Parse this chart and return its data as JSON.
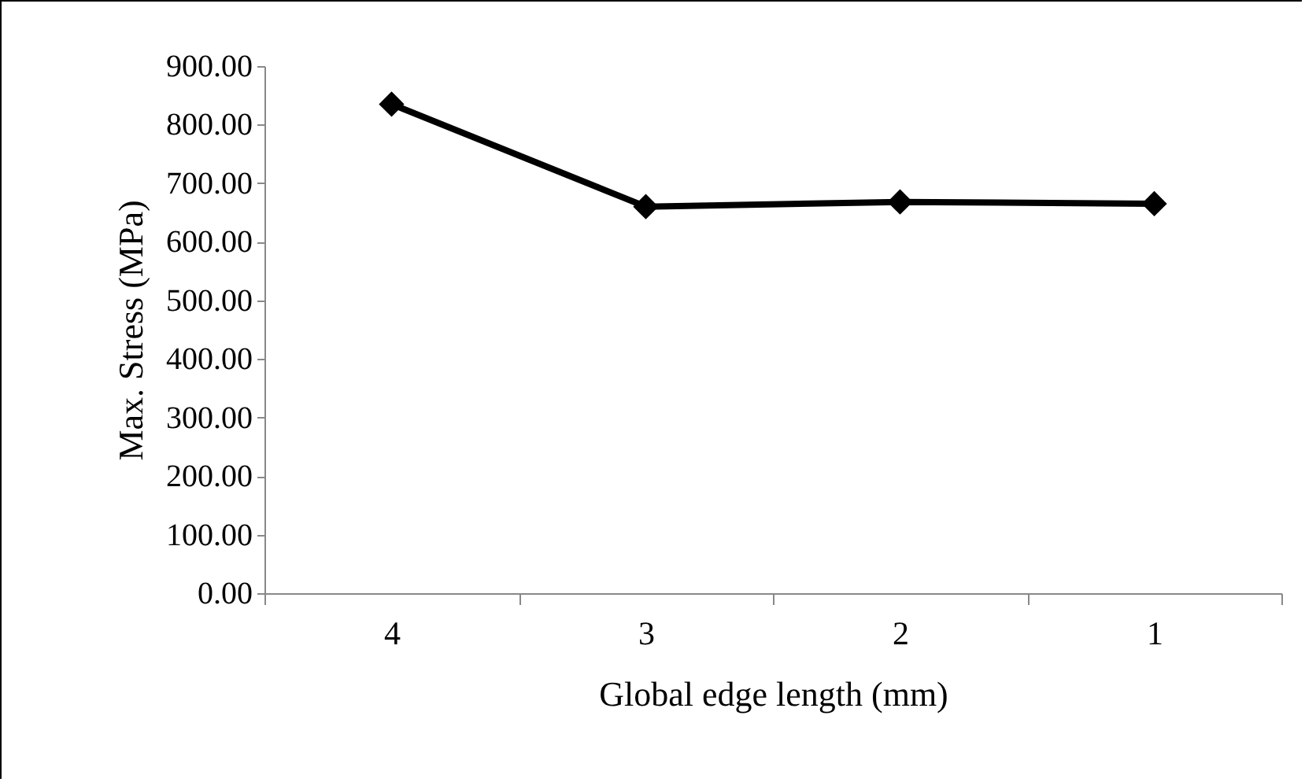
{
  "chart_data": {
    "type": "line",
    "xlabel": "Global edge length (mm)",
    "ylabel": "Max. Stress (MPa)",
    "categories": [
      "4",
      "3",
      "2",
      "1"
    ],
    "series": [
      {
        "color": "#000000",
        "values": [
          835,
          660,
          668,
          665
        ]
      }
    ],
    "ylim": [
      0,
      900
    ],
    "yticks": [
      {
        "value": 0,
        "label": "0.00"
      },
      {
        "value": 100,
        "label": "100.00"
      },
      {
        "value": 200,
        "label": "200.00"
      },
      {
        "value": 300,
        "label": "300.00"
      },
      {
        "value": 400,
        "label": "400.00"
      },
      {
        "value": 500,
        "label": "500.00"
      },
      {
        "value": 600,
        "label": "600.00"
      },
      {
        "value": 700,
        "label": "700.00"
      },
      {
        "value": 800,
        "label": "800.00"
      },
      {
        "value": 900,
        "label": "900.00"
      }
    ],
    "grid": false,
    "legend": false,
    "marker": "diamond",
    "line_style": "solid"
  }
}
